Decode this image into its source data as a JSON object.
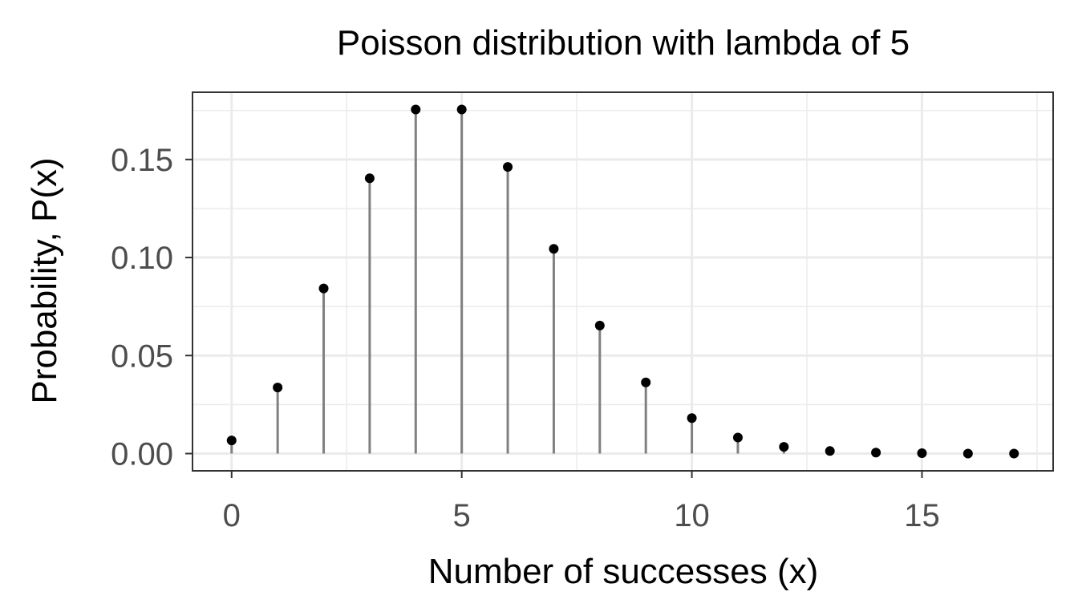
{
  "chart_data": {
    "type": "scatter",
    "title": "Poisson distribution with lambda of 5",
    "xlabel": "Number of successes (x)",
    "ylabel": "Probability, P(x)",
    "x": [
      0,
      1,
      2,
      3,
      4,
      5,
      6,
      7,
      8,
      9,
      10,
      11,
      12,
      13,
      14,
      15,
      16,
      17
    ],
    "y": [
      0.0067,
      0.0337,
      0.0842,
      0.1404,
      0.1755,
      0.1755,
      0.1462,
      0.1044,
      0.0653,
      0.0363,
      0.0181,
      0.0082,
      0.0034,
      0.0013,
      0.0005,
      0.0002,
      0.0,
      0.0
    ],
    "xlim": [
      -0.85,
      17.85
    ],
    "ylim": [
      -0.0088,
      0.1843
    ],
    "x_ticks": [
      0,
      5,
      10,
      15
    ],
    "x_tick_labels": [
      "0",
      "5",
      "10",
      "15"
    ],
    "y_ticks": [
      0.0,
      0.05,
      0.1,
      0.15
    ],
    "y_tick_labels": [
      "0.00",
      "0.05",
      "0.10",
      "0.15"
    ],
    "x_minor_ticks": [
      2.5,
      7.5,
      12.5,
      17.5
    ],
    "y_minor_ticks": [
      0.025,
      0.075,
      0.125,
      0.175
    ],
    "grid": true,
    "marker_color": "#000000",
    "stem_color": "#808080",
    "grid_color": "#ebebeb"
  }
}
